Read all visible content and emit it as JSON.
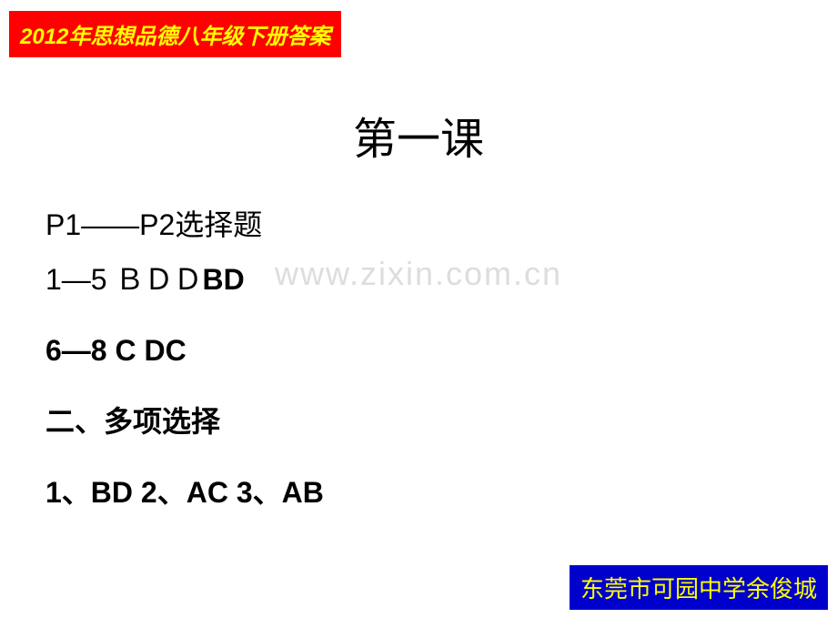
{
  "header": {
    "text": "2012年思想品德八年级下册答案",
    "bg_color": "#ff0000",
    "text_color": "#ffff00"
  },
  "title": "第一课",
  "watermark": "www.zixin.com.cn",
  "content": {
    "line1": "P1——P2选择题",
    "line2_prefix": "1—5  ＢＤＤ",
    "line2_bold": "BD",
    "line3": "6—8 C DC",
    "line4": "二、多项选择",
    "line5": "1、BD  2、AC   3、AB"
  },
  "footer": {
    "text": "东莞市可园中学余俊城",
    "bg_color": "#0000cc",
    "text_color": "#ffff00"
  },
  "styling": {
    "body_bg": "#ffffff",
    "title_fontsize": 48,
    "content_fontsize": 32,
    "watermark_color": "#dddddd"
  }
}
